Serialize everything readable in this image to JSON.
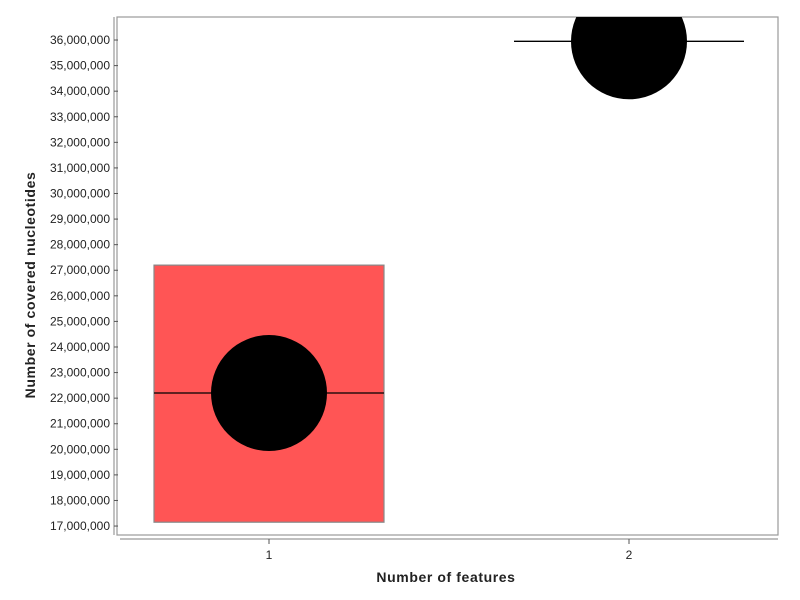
{
  "chart_data": {
    "type": "box",
    "xlabel": "Number of features",
    "ylabel": "Number of covered nucleotides",
    "categories": [
      "1",
      "2"
    ],
    "boxes": [
      {
        "category": "1",
        "q1": 17150000,
        "median": 22200000,
        "q3": 27200000,
        "mean": 22200000
      },
      {
        "category": "2",
        "q1": 35950000,
        "median": 35950000,
        "q3": 35950000,
        "mean": 35950000
      }
    ],
    "ylim": [
      16650000,
      36900000
    ],
    "yticks": [
      17000000,
      18000000,
      19000000,
      20000000,
      21000000,
      22000000,
      23000000,
      24000000,
      25000000,
      26000000,
      27000000,
      28000000,
      29000000,
      30000000,
      31000000,
      32000000,
      33000000,
      34000000,
      35000000,
      36000000
    ],
    "ytick_labels": [
      "17,000,000",
      "18,000,000",
      "19,000,000",
      "20,000,000",
      "21,000,000",
      "22,000,000",
      "23,000,000",
      "24,000,000",
      "25,000,000",
      "26,000,000",
      "27,000,000",
      "28,000,000",
      "29,000,000",
      "30,000,000",
      "31,000,000",
      "32,000,000",
      "33,000,000",
      "34,000,000",
      "35,000,000",
      "36,000,000"
    ],
    "grid": false,
    "colors": {
      "box_fill": "#ff5555",
      "box_stroke": "#888888",
      "marker": "#000000",
      "frame": "#999999"
    }
  }
}
